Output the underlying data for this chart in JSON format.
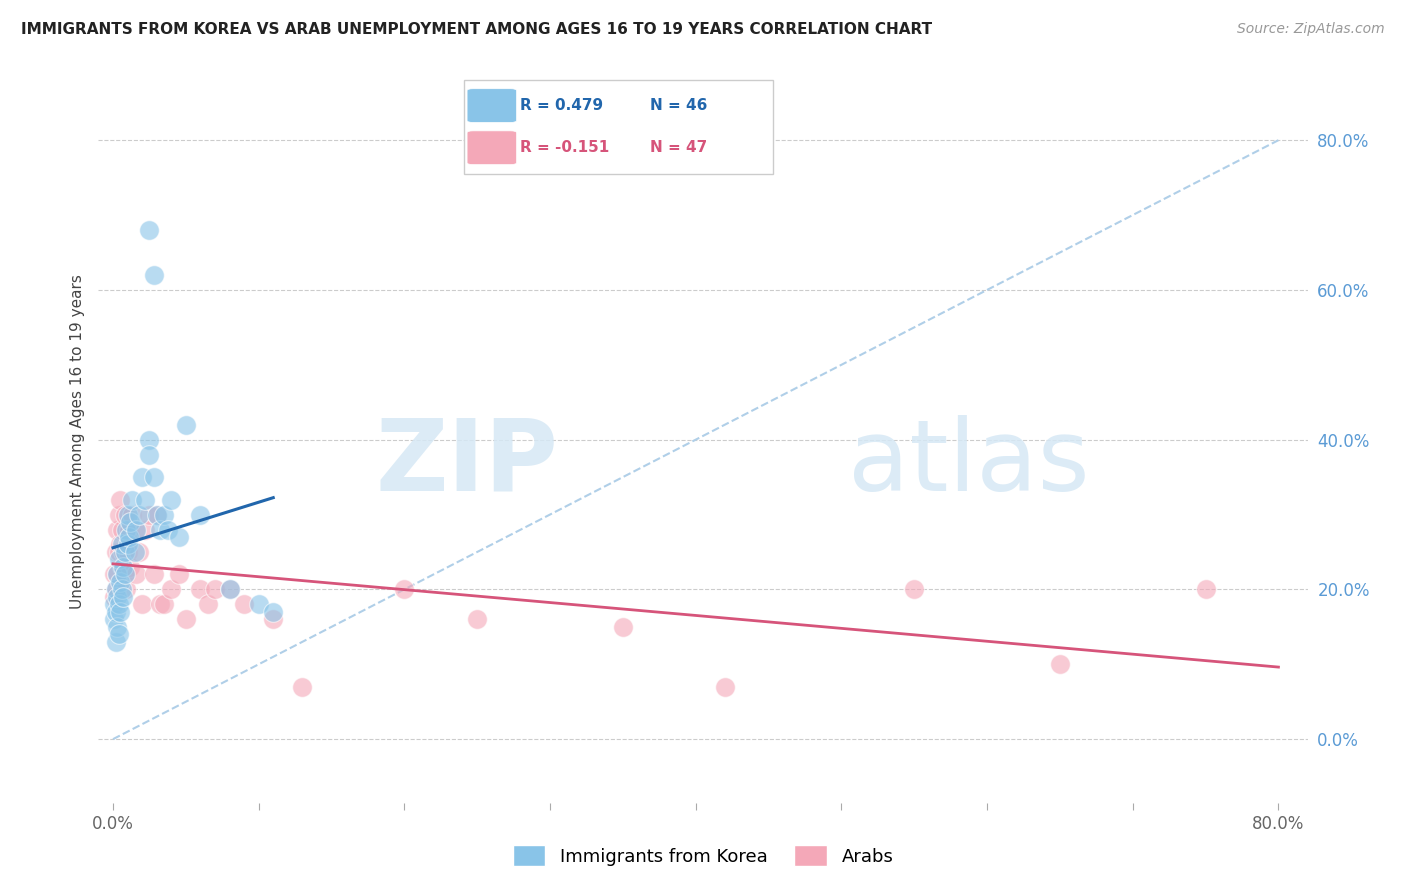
{
  "title": "IMMIGRANTS FROM KOREA VS ARAB UNEMPLOYMENT AMONG AGES 16 TO 19 YEARS CORRELATION CHART",
  "source": "Source: ZipAtlas.com",
  "ylabel": "Unemployment Among Ages 16 to 19 years",
  "xlim": [
    -0.01,
    0.82
  ],
  "ylim": [
    -0.085,
    0.88
  ],
  "right_ytick_vals": [
    0.0,
    0.2,
    0.4,
    0.6,
    0.8
  ],
  "right_ytick_labels": [
    "0.0%",
    "20.0%",
    "40.0%",
    "60.0%",
    "80.0%"
  ],
  "xtick_vals": [
    0.0,
    0.1,
    0.2,
    0.3,
    0.4,
    0.5,
    0.6,
    0.7,
    0.8
  ],
  "xtick_labels": [
    "0.0%",
    "",
    "",
    "",
    "",
    "",
    "",
    "",
    "80.0%"
  ],
  "korea_color": "#89c4e8",
  "arab_color": "#f4a8b8",
  "korea_line_color": "#2166ac",
  "arab_line_color": "#d6547a",
  "diag_color": "#b0cfe8",
  "legend_korea_text_color": "#2166ac",
  "legend_arab_text_color": "#d6547a",
  "grid_color": "#cccccc",
  "watermark_color": "#d6e8f5",
  "korea_x": [
    0.001,
    0.001,
    0.002,
    0.002,
    0.002,
    0.003,
    0.003,
    0.003,
    0.004,
    0.004,
    0.004,
    0.005,
    0.005,
    0.006,
    0.006,
    0.007,
    0.007,
    0.008,
    0.008,
    0.009,
    0.01,
    0.01,
    0.011,
    0.012,
    0.013,
    0.015,
    0.016,
    0.018,
    0.02,
    0.022,
    0.025,
    0.025,
    0.028,
    0.03,
    0.032,
    0.035,
    0.038,
    0.04,
    0.045,
    0.05,
    0.06,
    0.08,
    0.1,
    0.11,
    0.025,
    0.028
  ],
  "korea_y": [
    0.18,
    0.16,
    0.2,
    0.17,
    0.13,
    0.22,
    0.19,
    0.15,
    0.24,
    0.18,
    0.14,
    0.21,
    0.17,
    0.26,
    0.2,
    0.23,
    0.19,
    0.25,
    0.22,
    0.28,
    0.3,
    0.26,
    0.27,
    0.29,
    0.32,
    0.25,
    0.28,
    0.3,
    0.35,
    0.32,
    0.4,
    0.38,
    0.35,
    0.3,
    0.28,
    0.3,
    0.28,
    0.32,
    0.27,
    0.42,
    0.3,
    0.2,
    0.18,
    0.17,
    0.68,
    0.62
  ],
  "arab_x": [
    0.001,
    0.001,
    0.002,
    0.002,
    0.003,
    0.003,
    0.004,
    0.004,
    0.005,
    0.005,
    0.006,
    0.006,
    0.007,
    0.008,
    0.008,
    0.009,
    0.01,
    0.011,
    0.012,
    0.013,
    0.015,
    0.016,
    0.018,
    0.02,
    0.022,
    0.025,
    0.028,
    0.03,
    0.032,
    0.035,
    0.04,
    0.045,
    0.05,
    0.06,
    0.065,
    0.07,
    0.08,
    0.09,
    0.11,
    0.13,
    0.2,
    0.25,
    0.35,
    0.42,
    0.55,
    0.65,
    0.75
  ],
  "arab_y": [
    0.22,
    0.19,
    0.25,
    0.2,
    0.28,
    0.22,
    0.3,
    0.25,
    0.32,
    0.26,
    0.28,
    0.23,
    0.25,
    0.3,
    0.22,
    0.2,
    0.25,
    0.28,
    0.23,
    0.3,
    0.28,
    0.22,
    0.25,
    0.18,
    0.28,
    0.3,
    0.22,
    0.3,
    0.18,
    0.18,
    0.2,
    0.22,
    0.16,
    0.2,
    0.18,
    0.2,
    0.2,
    0.18,
    0.16,
    0.07,
    0.2,
    0.16,
    0.15,
    0.07,
    0.2,
    0.1,
    0.2
  ]
}
